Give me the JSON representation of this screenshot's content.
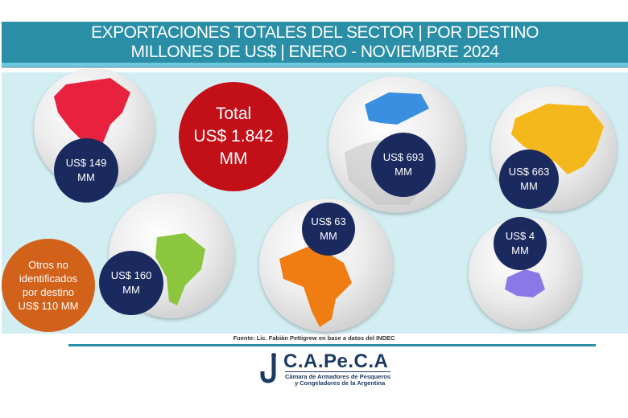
{
  "header": {
    "line1": "EXPORTACIONES TOTALES DEL SECTOR | POR DESTINO",
    "line2": "MILLONES DE US$ | ENERO - NOVIEMBRE 2024"
  },
  "total": {
    "line1": "Total",
    "line2": "US$ 1.842",
    "line3": "MM"
  },
  "regions": [
    {
      "name": "América del Norte",
      "amount": "US$ 149",
      "unit": "MM",
      "color": "#e8213f"
    },
    {
      "name": "Europa",
      "amount": "US$ 693",
      "unit": "MM",
      "color": "#3b8fe0"
    },
    {
      "name": "Asia",
      "amount": "US$ 663",
      "unit": "MM",
      "color": "#f5b81c"
    },
    {
      "name": "América del Sur",
      "amount": "US$ 160",
      "unit": "MM",
      "color": "#8cc63f"
    },
    {
      "name": "África",
      "amount": "US$ 63",
      "unit": "MM",
      "color": "#f07d11"
    },
    {
      "name": "Oceanía",
      "amount": "US$ 4",
      "unit": "MM",
      "color": "#8a78e8"
    }
  ],
  "otros": {
    "line1": "Otros no",
    "line2": "identificados",
    "line3": "por destino",
    "line4": "US$ 110 MM"
  },
  "source": "Fuente: Lic. Fabián Pettigrew en base a datos del INDEC",
  "logo": {
    "name": "C.A.Pe.C.A",
    "sub1": "Cámara de Armadores de Pesqueros",
    "sub2": "y Congeladores de la Argentina"
  }
}
